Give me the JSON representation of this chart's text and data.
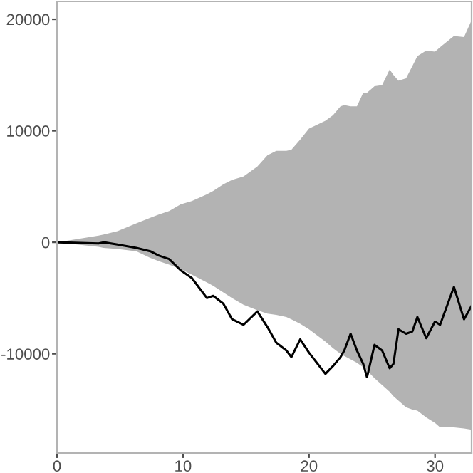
{
  "chart_data": {
    "type": "line",
    "xlim": [
      0,
      32.9
    ],
    "ylim": [
      -18900,
      21600
    ],
    "xticks": [
      0,
      10,
      20,
      30
    ],
    "yticks": [
      -10000,
      0,
      10000,
      20000
    ],
    "grid": false,
    "legend": false,
    "series": [
      {
        "color": "#000000",
        "x": [
          0,
          3.3,
          3.7,
          4.8,
          6.3,
          7.4,
          8.1,
          8.9,
          9.8,
          10.7,
          11.9,
          12.4,
          13.2,
          13.9,
          14.8,
          15.9,
          16.7,
          17.4,
          18.2,
          18.6,
          19.3,
          20.0,
          21.3,
          21.9,
          22.5,
          22.8,
          23.3,
          23.8,
          24.3,
          24.6,
          25.2,
          25.8,
          26.4,
          26.7,
          27.1,
          27.7,
          28.2,
          28.6,
          29.3,
          30.0,
          30.4,
          31.5,
          32.3,
          32.9
        ],
        "values": [
          0,
          -100,
          0,
          -200,
          -500,
          -800,
          -1200,
          -1500,
          -2500,
          -3200,
          -5000,
          -4800,
          -5500,
          -6900,
          -7400,
          -6200,
          -7600,
          -9000,
          -9700,
          -10300,
          -8700,
          -9900,
          -11800,
          -11100,
          -10300,
          -9700,
          -8200,
          -9700,
          -10900,
          -12100,
          -9200,
          -9700,
          -11300,
          -10900,
          -7800,
          -8200,
          -8000,
          -6700,
          -8600,
          -7100,
          -7400,
          -4000,
          -6900,
          -5700
        ],
        "lower": [
          0,
          -400,
          -500,
          -600,
          -800,
          -1400,
          -1700,
          -2000,
          -2400,
          -2900,
          -3600,
          -3900,
          -4500,
          -5000,
          -5600,
          -6100,
          -6400,
          -6500,
          -6700,
          -6900,
          -7300,
          -7800,
          -8900,
          -9500,
          -10000,
          -10200,
          -10500,
          -10800,
          -11200,
          -11500,
          -12200,
          -12800,
          -13400,
          -13800,
          -14200,
          -14800,
          -15000,
          -15100,
          -15700,
          -16200,
          -16600,
          -16600,
          -16700,
          -16800
        ],
        "upper": [
          0,
          600,
          700,
          1000,
          1700,
          2200,
          2500,
          2800,
          3400,
          3700,
          4300,
          4600,
          5200,
          5600,
          5900,
          6800,
          7800,
          8200,
          8200,
          8300,
          9200,
          10200,
          10900,
          11400,
          12200,
          12300,
          12200,
          12200,
          13400,
          13400,
          14000,
          14100,
          15500,
          15000,
          14500,
          14700,
          15800,
          16700,
          17200,
          17100,
          17500,
          18500,
          18400,
          19900
        ]
      }
    ]
  }
}
